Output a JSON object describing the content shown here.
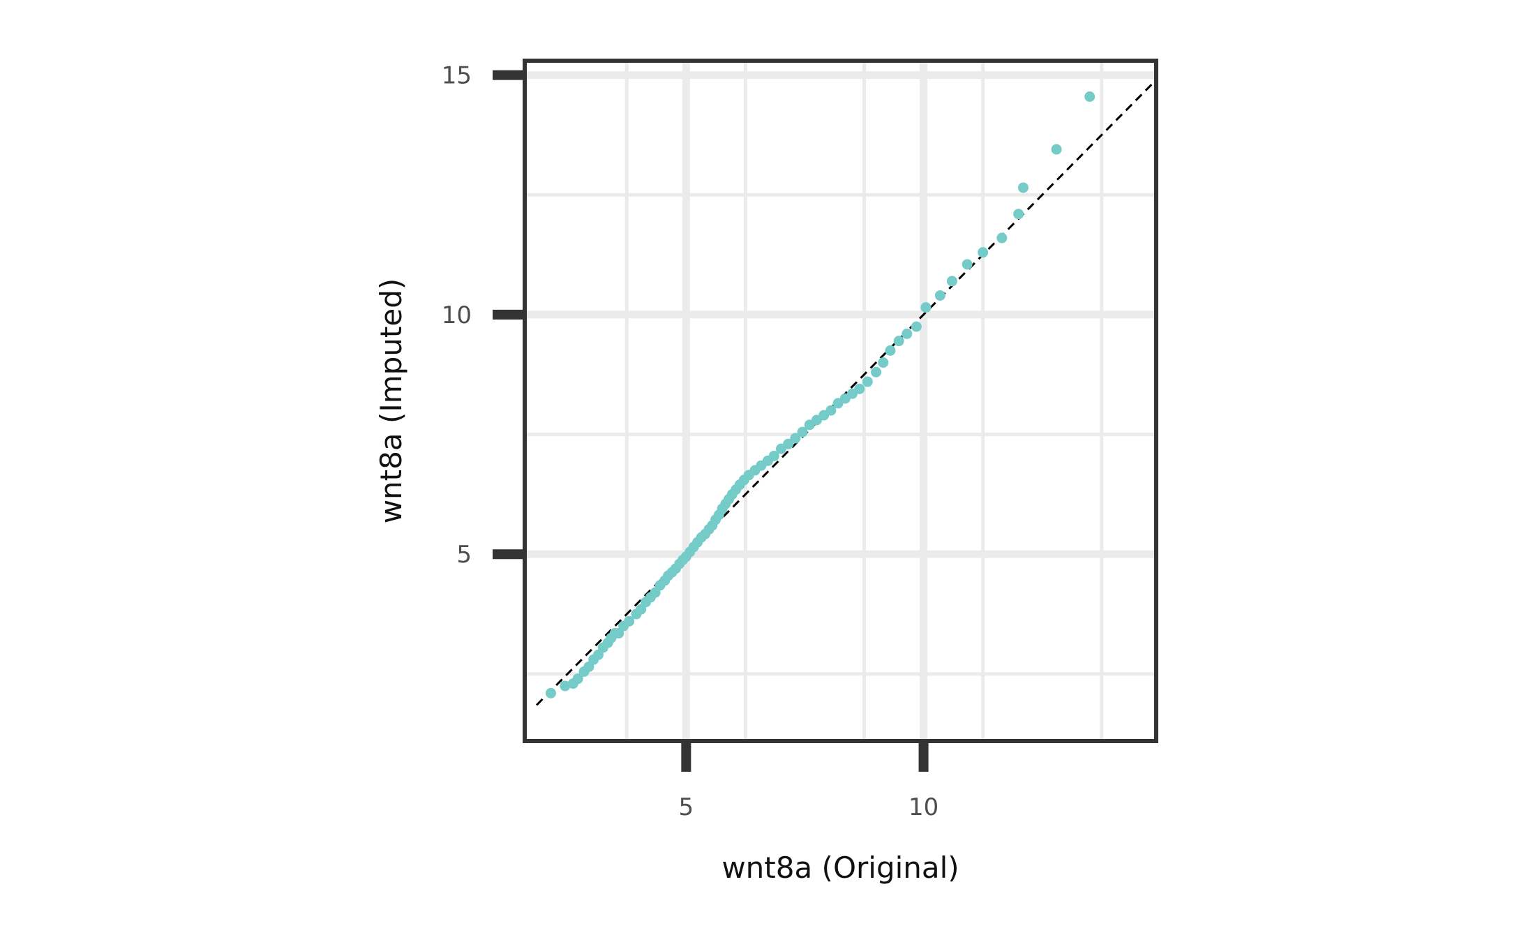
{
  "chart_data": {
    "type": "scatter",
    "title": "",
    "xlabel": "wnt8a (Original)",
    "ylabel": "wnt8a (Imputed)",
    "xlim": [
      1.6,
      14.9
    ],
    "ylim": [
      1.1,
      15.3
    ],
    "x_ticks": [
      5,
      10
    ],
    "x_tick_labels": [
      "5",
      "10"
    ],
    "y_ticks": [
      5,
      10,
      15
    ],
    "y_tick_labels": [
      "5",
      "10",
      "15"
    ],
    "x_minor_grid": [
      3.75,
      6.25,
      8.75,
      11.25,
      13.75
    ],
    "y_minor_grid": [
      2.5,
      7.5,
      12.5
    ],
    "grid": true,
    "legend": "none",
    "reference_line": {
      "slope": 1,
      "intercept": 0,
      "style": "dashed",
      "color": "#000000"
    },
    "point_color": "#74cbc8",
    "series": [
      {
        "x": [
          2.15,
          2.45,
          2.62,
          2.72,
          2.85,
          2.95,
          3.05,
          3.15,
          3.25,
          3.35,
          3.42,
          3.5,
          3.58,
          3.68,
          3.8,
          3.95,
          4.05,
          4.15,
          4.25,
          4.35,
          4.45,
          4.55,
          4.62,
          4.7,
          4.78,
          4.86,
          4.93,
          5.0,
          5.08,
          5.16,
          5.24,
          5.32,
          5.4,
          5.48,
          5.55,
          5.62,
          5.69,
          5.76,
          5.83,
          5.9,
          5.97,
          6.05,
          6.13,
          6.22,
          6.32,
          6.45,
          6.58,
          6.72,
          6.85,
          7.0,
          7.15,
          7.3,
          7.45,
          7.6,
          7.75,
          7.9,
          8.05,
          8.2,
          8.35,
          8.5,
          8.65,
          8.82,
          9.0,
          9.15,
          9.3,
          9.48,
          9.65,
          9.85,
          10.05,
          10.35,
          10.6,
          10.92,
          11.25,
          11.65,
          12.0,
          12.1,
          12.8,
          13.5
        ],
        "y": [
          2.1,
          2.25,
          2.3,
          2.4,
          2.55,
          2.65,
          2.8,
          2.9,
          3.05,
          3.15,
          3.25,
          3.35,
          3.35,
          3.5,
          3.6,
          3.75,
          3.85,
          4.0,
          4.1,
          4.2,
          4.35,
          4.45,
          4.55,
          4.62,
          4.7,
          4.8,
          4.88,
          4.95,
          5.05,
          5.15,
          5.25,
          5.35,
          5.42,
          5.52,
          5.6,
          5.72,
          5.82,
          5.95,
          6.05,
          6.15,
          6.25,
          6.35,
          6.45,
          6.55,
          6.65,
          6.75,
          6.85,
          6.95,
          7.05,
          7.2,
          7.3,
          7.42,
          7.55,
          7.7,
          7.8,
          7.9,
          8.0,
          8.15,
          8.25,
          8.35,
          8.45,
          8.6,
          8.8,
          9.0,
          9.25,
          9.45,
          9.6,
          9.75,
          10.15,
          10.4,
          10.7,
          11.05,
          11.3,
          11.6,
          12.1,
          12.65,
          13.45,
          14.55
        ]
      }
    ]
  }
}
